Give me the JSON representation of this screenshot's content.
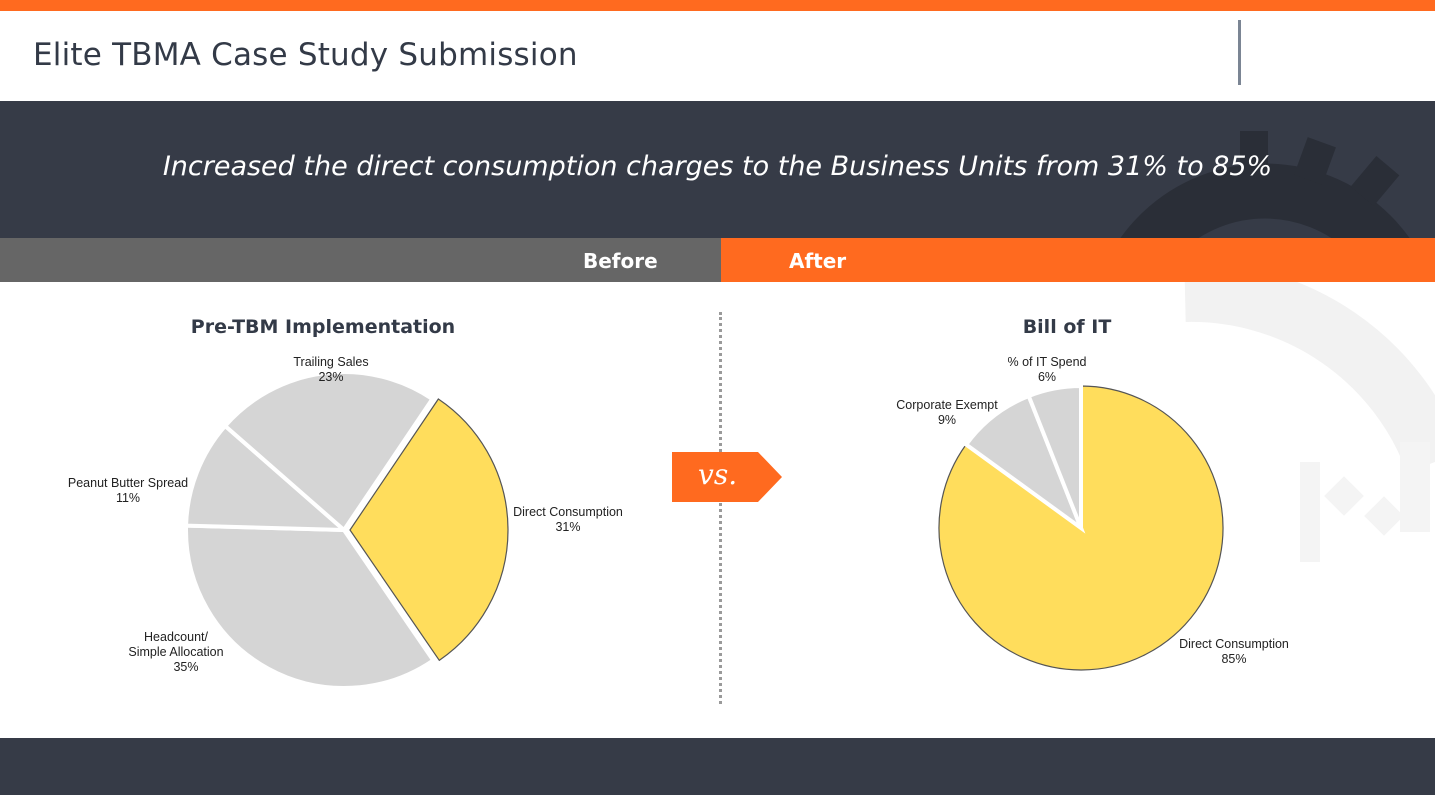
{
  "header": {
    "title": "Elite TBMA Case Study Submission"
  },
  "banner": {
    "text": "Increased the direct consumption charges to the Business Units from 31% to 85%"
  },
  "tabs": {
    "before": "Before",
    "after": "After"
  },
  "vs_label": "vs.",
  "colors": {
    "accent": "#ff6a1f",
    "dark": "#363b47",
    "grey_tab": "#666666",
    "slice_highlight": "#ffdd5c",
    "slice_other": "#d5d5d5"
  },
  "chart_data": [
    {
      "type": "pie",
      "title": "Pre-TBM Implementation",
      "slices": [
        {
          "label": "Direct Consumption",
          "value": 31,
          "display": "31%",
          "highlight": true
        },
        {
          "label": "Headcount/\nSimple Allocation",
          "value": 35,
          "display": "35%",
          "highlight": false
        },
        {
          "label": "Peanut Butter Spread",
          "value": 11,
          "display": "11%",
          "highlight": false
        },
        {
          "label": "Trailing Sales",
          "value": 23,
          "display": "23%",
          "highlight": false
        }
      ]
    },
    {
      "type": "pie",
      "title": "Bill of IT",
      "slices": [
        {
          "label": "Direct Consumption",
          "value": 85,
          "display": "85%",
          "highlight": true
        },
        {
          "label": "Corporate Exempt",
          "value": 9,
          "display": "9%",
          "highlight": false
        },
        {
          "label": "% of IT Spend",
          "value": 6,
          "display": "6%",
          "highlight": false
        }
      ]
    }
  ]
}
